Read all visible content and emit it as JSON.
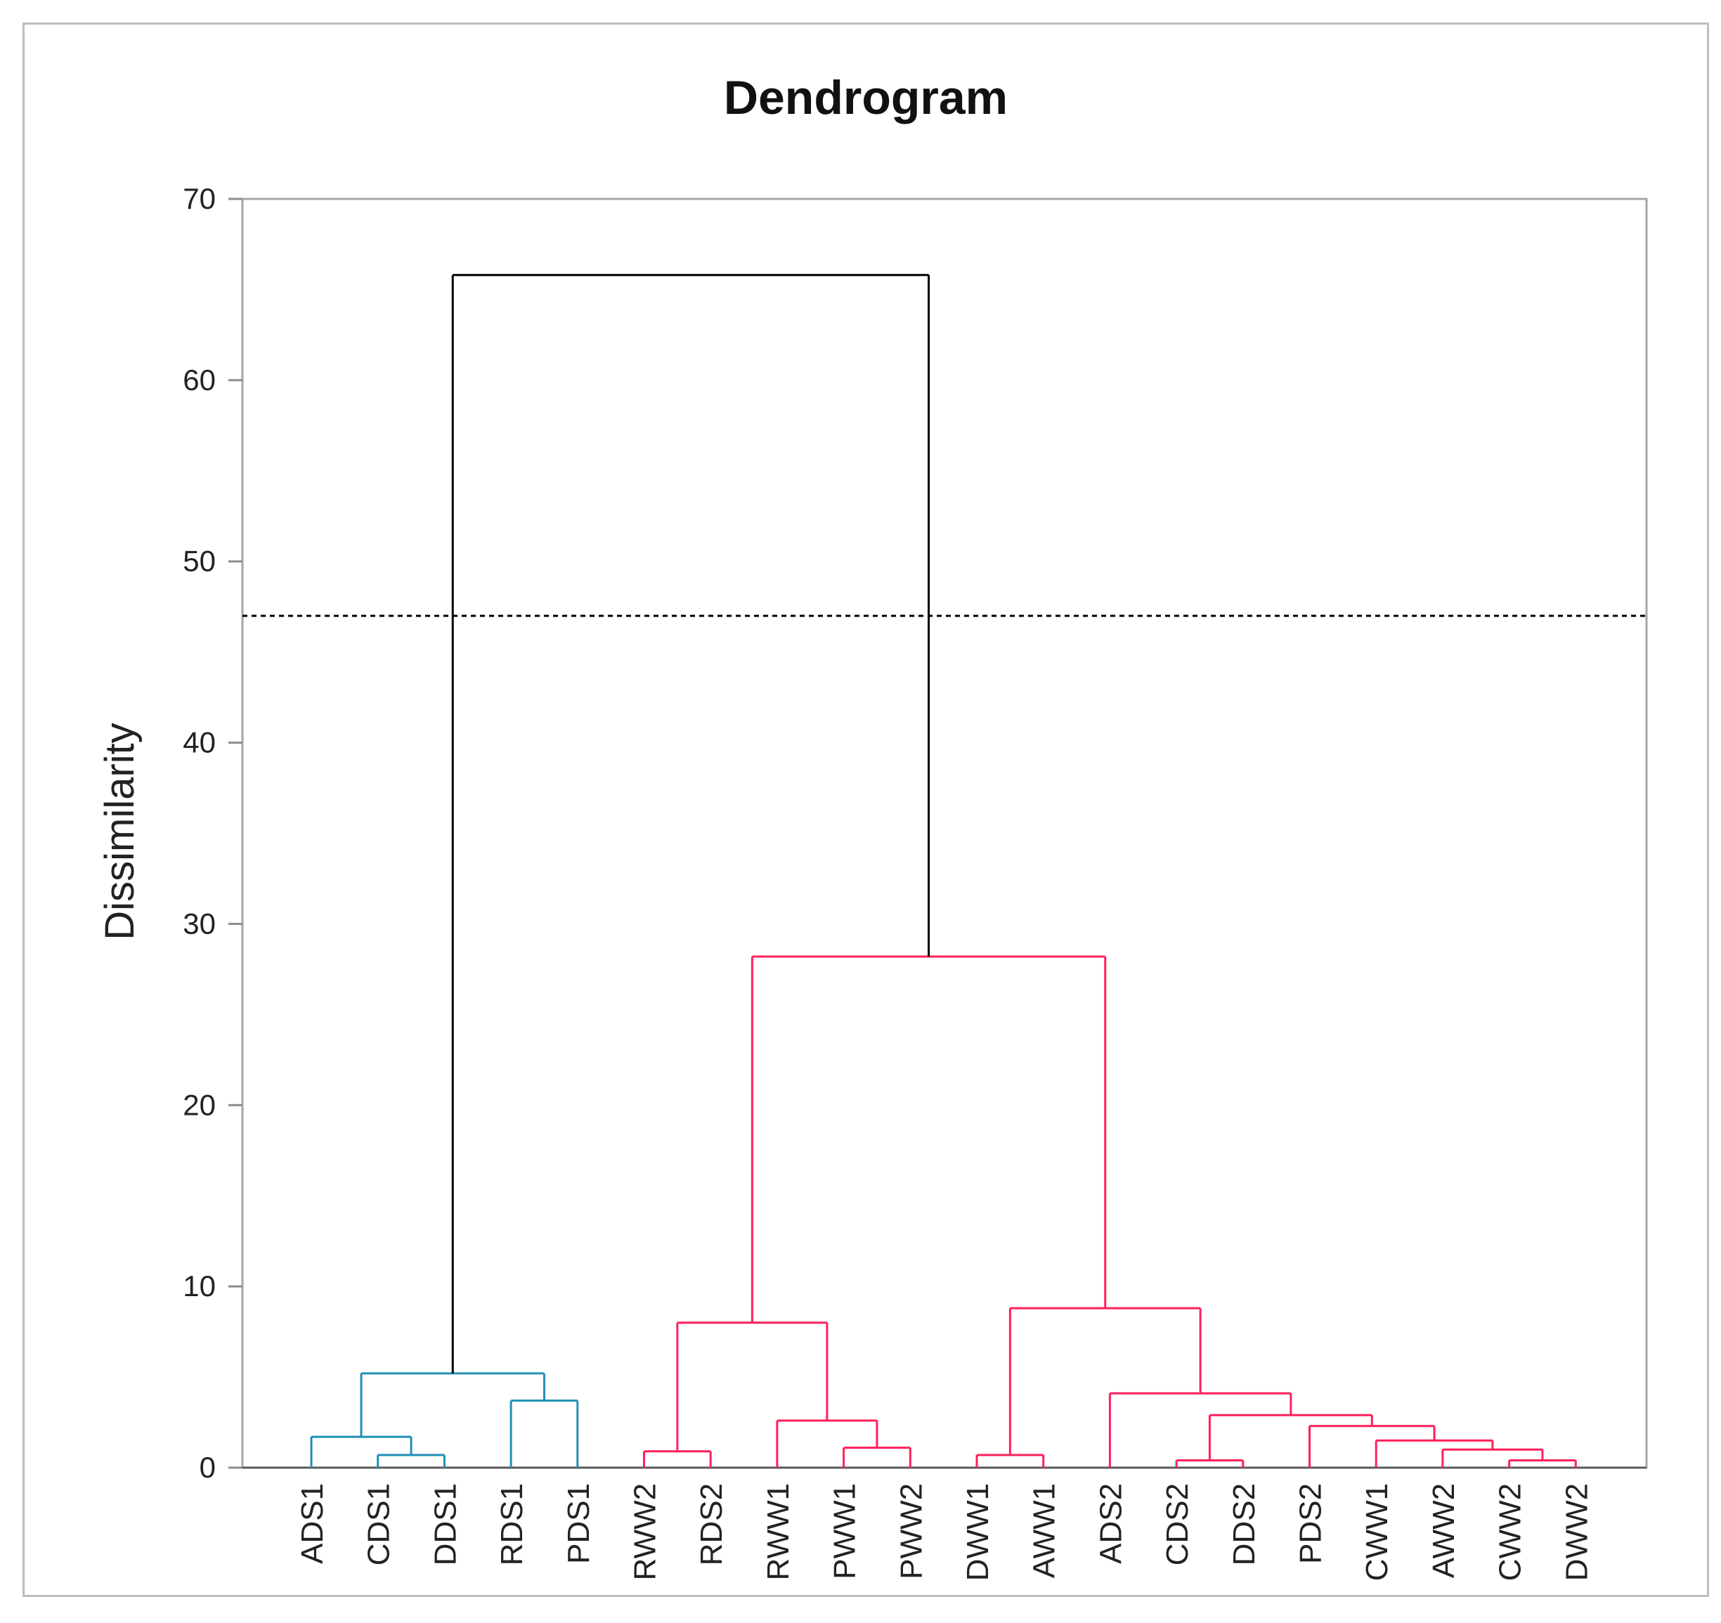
{
  "chart_data": {
    "type": "dendrogram",
    "title": "Dendrogram",
    "xlabel": "",
    "ylabel": "Dissimilarity",
    "ylim": [
      0,
      70
    ],
    "yticks": [
      0,
      10,
      20,
      30,
      40,
      50,
      60,
      70
    ],
    "cut_line": 47,
    "leaves": [
      "ADS1",
      "CDS1",
      "DDS1",
      "RDS1",
      "PDS1",
      "RWW2",
      "RDS2",
      "RWW1",
      "PWW1",
      "PWW2",
      "DWW1",
      "AWW1",
      "ADS2",
      "CDS2",
      "DDS2",
      "PDS2",
      "CWW1",
      "AWW2",
      "CWW2",
      "DWW2"
    ],
    "cluster_colors": {
      "cluster1": "#1f8fb5",
      "cluster2": "#ff1f5a",
      "root": "#000000"
    },
    "merges": [
      {
        "left": "CDS1",
        "right": "DDS1",
        "height": 0.7,
        "cluster": "cluster1"
      },
      {
        "left": "ADS1",
        "right": "CDS1+DDS1",
        "height": 1.7,
        "cluster": "cluster1"
      },
      {
        "left": "RDS1",
        "right": "PDS1",
        "height": 3.7,
        "cluster": "cluster1"
      },
      {
        "left": "ADS1+CDS1+DDS1",
        "right": "RDS1+PDS1",
        "height": 5.2,
        "cluster": "cluster1"
      },
      {
        "left": "RWW2",
        "right": "RDS2",
        "height": 0.9,
        "cluster": "cluster2"
      },
      {
        "left": "PWW1",
        "right": "PWW2",
        "height": 1.1,
        "cluster": "cluster2"
      },
      {
        "left": "RWW1",
        "right": "PWW1+PWW2",
        "height": 2.6,
        "cluster": "cluster2"
      },
      {
        "left": "RWW2+RDS2",
        "right": "RWW1+PWW1+PWW2",
        "height": 8.0,
        "cluster": "cluster2"
      },
      {
        "left": "DWW1",
        "right": "AWW1",
        "height": 0.7,
        "cluster": "cluster2"
      },
      {
        "left": "CDS2",
        "right": "DDS2",
        "height": 0.4,
        "cluster": "cluster2"
      },
      {
        "left": "CWW2",
        "right": "DWW2",
        "height": 0.4,
        "cluster": "cluster2"
      },
      {
        "left": "AWW2",
        "right": "CWW2+DWW2",
        "height": 1.0,
        "cluster": "cluster2"
      },
      {
        "left": "CWW1",
        "right": "AWW2+CWW2+DWW2",
        "height": 1.5,
        "cluster": "cluster2"
      },
      {
        "left": "PDS2",
        "right": "CWW1+AWW2+CWW2+DWW2",
        "height": 2.3,
        "cluster": "cluster2"
      },
      {
        "left": "CDS2+DDS2",
        "right": "PDS2+CWW1+AWW2+CWW2+DWW2",
        "height": 2.9,
        "cluster": "cluster2"
      },
      {
        "left": "ADS2",
        "right": "CDS2+DDS2+PDS2+CWW1+AWW2+CWW2+DWW2",
        "height": 4.1,
        "cluster": "cluster2"
      },
      {
        "left": "DWW1+AWW1",
        "right": "ADS2+...+DWW2",
        "height": 8.8,
        "cluster": "cluster2"
      },
      {
        "left": "RWW2+...+PWW2",
        "right": "DWW1+...+DWW2",
        "height": 28.2,
        "cluster": "cluster2"
      },
      {
        "left": "cluster1",
        "right": "cluster2",
        "height": 65.8,
        "cluster": "root"
      }
    ]
  }
}
